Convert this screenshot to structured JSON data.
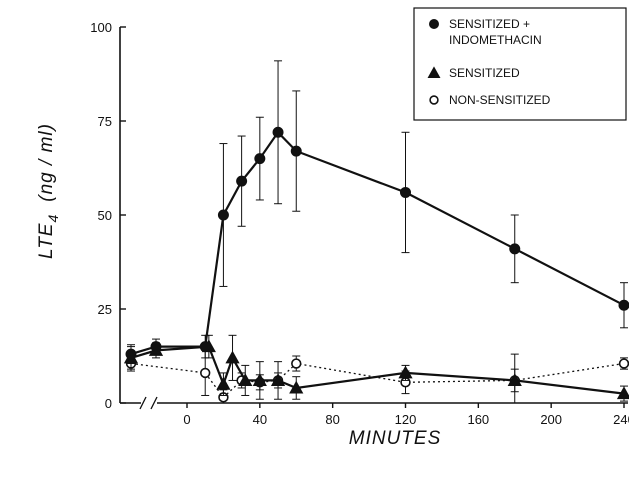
{
  "chart_data": {
    "type": "line",
    "xlabel": "MINUTES",
    "ylabel": "LTE",
    "ylabel_sub": "4",
    "ylabel_unit": "(ng / ml)",
    "xlim": [
      -30,
      240
    ],
    "ylim": [
      0,
      100
    ],
    "x_ticks": [
      0,
      40,
      80,
      120,
      160,
      200,
      240
    ],
    "y_ticks": [
      0,
      25,
      50,
      75,
      100
    ],
    "x_tick_labels": [
      "0",
      "40",
      "80",
      "120",
      "160",
      "200",
      "240"
    ],
    "y_tick_labels": [
      "0",
      "25",
      "50",
      "75",
      "100"
    ],
    "axis_break": true,
    "legend_position": "top-right",
    "series": [
      {
        "name": "SENSITIZED + INDOMETHACIN",
        "legend_lines": [
          "SENSITIZED +",
          "INDOMETHACIN"
        ],
        "marker": "filled-circle",
        "line": "solid",
        "x": [
          -30,
          -5,
          10,
          20,
          30,
          40,
          50,
          60,
          120,
          180,
          240
        ],
        "y": [
          13,
          15,
          15,
          50,
          59,
          65,
          72,
          67,
          56,
          41,
          26
        ],
        "err": [
          2.5,
          2,
          3,
          19,
          12,
          11,
          19,
          16,
          16,
          9,
          6
        ]
      },
      {
        "name": "SENSITIZED",
        "legend_lines": [
          "SENSITIZED"
        ],
        "marker": "filled-triangle",
        "line": "solid",
        "x": [
          -30,
          -5,
          12,
          20,
          25,
          32,
          40,
          50,
          60,
          120,
          180,
          240
        ],
        "y": [
          12,
          14,
          15,
          5,
          12,
          6,
          6,
          6,
          4,
          8,
          6,
          2.5
        ],
        "err": [
          3,
          2,
          3,
          3,
          6,
          4,
          5,
          5,
          3,
          2,
          3,
          2
        ]
      },
      {
        "name": "NON-SENSITIZED",
        "legend_lines": [
          "NON-SENSITIZED"
        ],
        "marker": "open-circle",
        "line": "dotted",
        "x": [
          -30,
          10,
          20,
          30,
          40,
          50,
          60,
          120,
          180,
          240
        ],
        "y": [
          10.5,
          8,
          1.5,
          6,
          5.5,
          6,
          10.5,
          5.5,
          6,
          10.5
        ],
        "err": [
          2,
          6,
          2,
          2,
          2,
          2,
          2,
          3,
          7,
          1.5
        ]
      }
    ]
  }
}
